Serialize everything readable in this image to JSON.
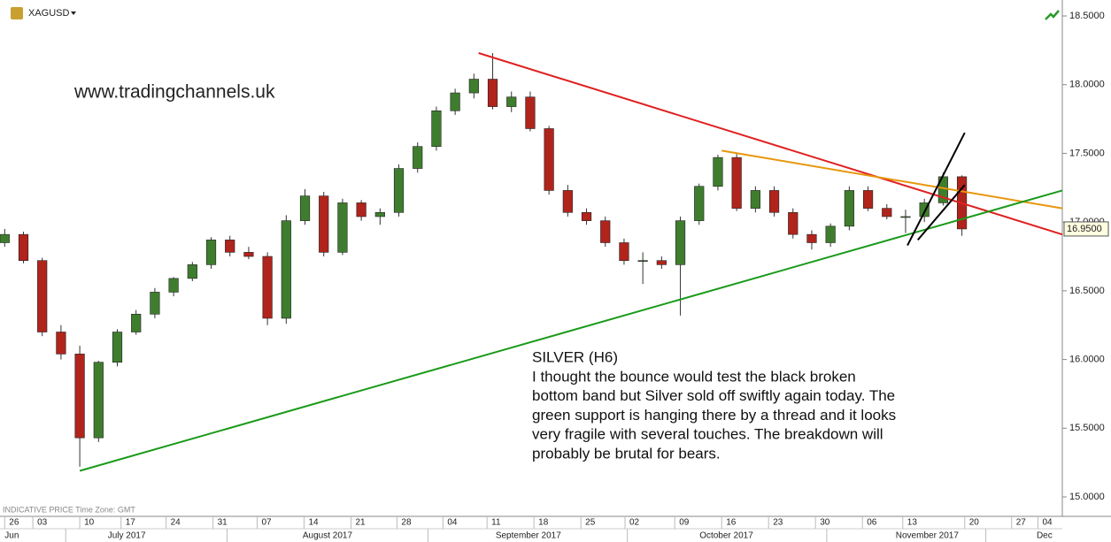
{
  "chart_data": {
    "type": "candlestick",
    "symbol": "XAGUSD",
    "watermark": "www.tradingchannels.uk",
    "footer_note": "INDICATIVE PRICE   Time Zone: GMT",
    "annotation": [
      "SILVER (H6)",
      "I thought the bounce would test the black broken",
      "bottom band but Silver sold off swiftly again today. The",
      "green support is hanging there by a thread and it looks",
      "very fragile with several touches. The breakdown will",
      "probably be brutal for bears."
    ],
    "x": [
      -3,
      -1,
      1,
      3,
      5,
      7,
      9,
      11,
      13,
      15,
      17,
      19,
      21,
      23,
      25,
      27,
      29,
      31,
      33,
      35,
      37,
      39,
      41,
      43,
      45,
      47,
      49,
      51,
      53,
      55,
      57,
      59,
      61,
      63,
      65,
      67,
      69,
      71,
      73,
      75,
      77,
      79,
      81,
      83,
      85,
      87,
      89,
      91,
      93,
      95,
      97,
      99
    ],
    "open": [
      16.85,
      16.91,
      16.72,
      16.2,
      16.04,
      15.43,
      15.98,
      16.2,
      16.33,
      16.49,
      16.59,
      16.69,
      16.87,
      16.78,
      16.75,
      16.3,
      17.01,
      17.19,
      16.78,
      17.14,
      17.04,
      17.07,
      17.39,
      17.55,
      17.81,
      17.94,
      18.04,
      17.84,
      17.91,
      17.68,
      17.23,
      17.07,
      17.01,
      16.85,
      16.72,
      16.72,
      16.69,
      17.01,
      17.26,
      17.47,
      17.1,
      17.23,
      17.07,
      16.91,
      16.85,
      16.97,
      17.23,
      17.1,
      17.04,
      17.04,
      17.14,
      17.33
    ],
    "high": [
      16.95,
      16.93,
      16.74,
      16.25,
      16.1,
      15.99,
      16.22,
      16.36,
      16.52,
      16.6,
      16.71,
      16.89,
      16.9,
      16.82,
      16.78,
      17.05,
      17.24,
      17.22,
      17.17,
      17.16,
      17.1,
      17.42,
      17.58,
      17.84,
      17.97,
      18.08,
      18.23,
      17.95,
      17.95,
      17.7,
      17.27,
      17.1,
      17.04,
      16.88,
      16.78,
      16.75,
      17.04,
      17.28,
      17.49,
      17.5,
      17.26,
      17.26,
      17.1,
      16.94,
      16.99,
      17.26,
      17.26,
      17.13,
      17.09,
      17.17,
      17.36,
      17.34
    ],
    "low": [
      16.82,
      16.7,
      16.17,
      16.0,
      15.22,
      15.4,
      15.95,
      16.18,
      16.3,
      16.46,
      16.57,
      16.66,
      16.75,
      16.73,
      16.25,
      16.26,
      16.98,
      16.75,
      16.76,
      17.01,
      16.98,
      17.04,
      17.36,
      17.52,
      17.78,
      17.9,
      17.82,
      17.8,
      17.66,
      17.2,
      17.04,
      16.98,
      16.82,
      16.69,
      16.55,
      16.66,
      16.32,
      16.98,
      17.23,
      17.08,
      17.07,
      17.04,
      16.88,
      16.8,
      16.82,
      16.94,
      17.08,
      17.02,
      16.92,
      17.0,
      17.12,
      16.9
    ],
    "close": [
      16.91,
      16.72,
      16.2,
      16.04,
      15.43,
      15.98,
      16.2,
      16.33,
      16.49,
      16.59,
      16.69,
      16.87,
      16.78,
      16.75,
      16.3,
      17.01,
      17.19,
      16.78,
      17.14,
      17.04,
      17.07,
      17.39,
      17.55,
      17.81,
      17.94,
      18.04,
      17.84,
      17.91,
      17.68,
      17.23,
      17.07,
      17.01,
      16.85,
      16.72,
      16.72,
      16.69,
      17.01,
      17.26,
      17.47,
      17.1,
      17.23,
      17.07,
      16.91,
      16.85,
      16.97,
      17.23,
      17.1,
      17.04,
      17.04,
      17.14,
      17.33,
      16.95
    ],
    "up_color": "#3f7d2e",
    "down_color": "#b0241c",
    "lines": [
      {
        "color": "#e02020",
        "x": [
          47.5,
          109.7
        ],
        "y": [
          18.23,
          16.91
        ]
      },
      {
        "color": "#e8960c",
        "x": [
          73.4,
          109.7
        ],
        "y": [
          17.52,
          17.1
        ]
      },
      {
        "color": "#1a9a1a",
        "x": [
          5,
          109.7
        ],
        "y": [
          15.19,
          17.23
        ]
      },
      {
        "color": "#000000",
        "x": [
          93.2,
          99.3
        ],
        "y": [
          16.83,
          17.65
        ]
      },
      {
        "color": "#000000",
        "x": [
          94.3,
          99.3
        ],
        "y": [
          16.87,
          17.27
        ]
      }
    ],
    "last_price": {
      "value": 16.95,
      "label": "16.9500"
    },
    "xlim": [
      -3.5,
      109.7
    ],
    "ylim": [
      14.865,
      18.616
    ],
    "yticks": [
      {
        "value": 15,
        "label": "15.0000"
      },
      {
        "value": 15.5,
        "label": "15.5000"
      },
      {
        "value": 16,
        "label": "16.0000"
      },
      {
        "value": 16.5,
        "label": "16.5000"
      },
      {
        "value": 17,
        "label": "17.0000"
      },
      {
        "value": 17.5,
        "label": "17.5000"
      },
      {
        "value": 18,
        "label": "18.0000"
      },
      {
        "value": 18.5,
        "label": "18.5000"
      }
    ],
    "xticks": [
      {
        "value": -3,
        "label": "26"
      },
      {
        "value": 0,
        "label": "03"
      },
      {
        "value": 5,
        "label": "10"
      },
      {
        "value": 9.4,
        "label": "17"
      },
      {
        "value": 14.2,
        "label": "24"
      },
      {
        "value": 19.2,
        "label": "31"
      },
      {
        "value": 23.9,
        "label": "07"
      },
      {
        "value": 28.9,
        "label": "14"
      },
      {
        "value": 33.9,
        "label": "21"
      },
      {
        "value": 38.8,
        "label": "28"
      },
      {
        "value": 43.7,
        "label": "04"
      },
      {
        "value": 48.4,
        "label": "11"
      },
      {
        "value": 53.4,
        "label": "18"
      },
      {
        "value": 58.4,
        "label": "25"
      },
      {
        "value": 63.1,
        "label": "02"
      },
      {
        "value": 68.4,
        "label": "09"
      },
      {
        "value": 73.4,
        "label": "16"
      },
      {
        "value": 78.4,
        "label": "23"
      },
      {
        "value": 83.4,
        "label": "30"
      },
      {
        "value": 88.4,
        "label": "06"
      },
      {
        "value": 92.7,
        "label": "13"
      },
      {
        "value": 99.3,
        "label": "20"
      },
      {
        "value": 104.3,
        "label": "27"
      },
      {
        "value": 107.1,
        "label": "04"
      }
    ],
    "months": [
      {
        "value": -3,
        "label": "Jun"
      },
      {
        "value": 10,
        "label": "July 2017"
      },
      {
        "value": 31.4,
        "label": "August 2017"
      },
      {
        "value": 52.8,
        "label": "September 2017"
      },
      {
        "value": 73.9,
        "label": "October 2017"
      },
      {
        "value": 95.3,
        "label": "November 2017"
      },
      {
        "value": 107.8,
        "label": "Dec"
      }
    ]
  }
}
